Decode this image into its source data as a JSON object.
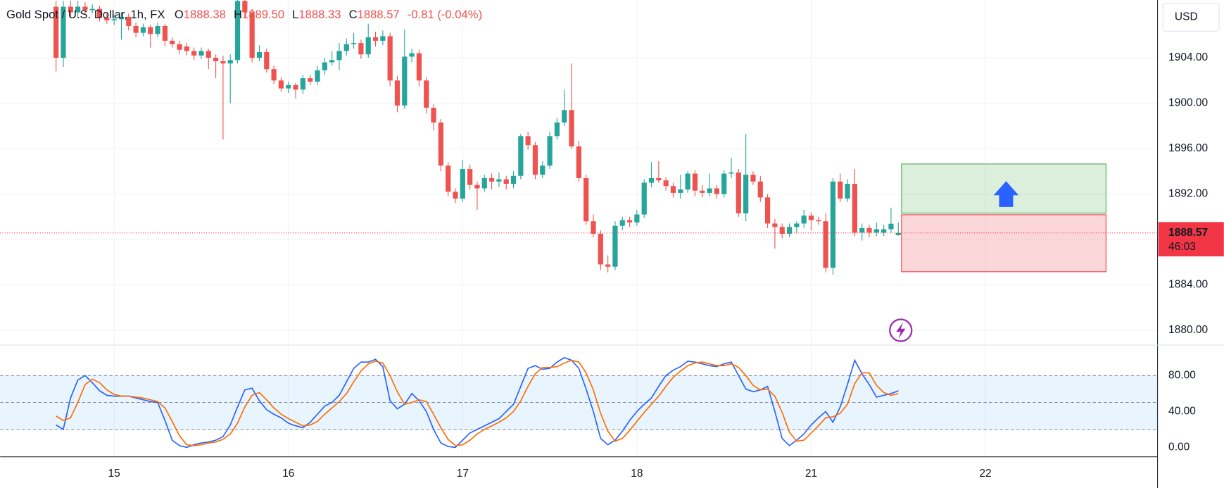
{
  "chart_data": {
    "type": "candlestick",
    "title": "Gold Spot / U.S. Dollar, 1h, FX",
    "ohlc_legend": [
      {
        "key": "O",
        "text": "1888.38"
      },
      {
        "key": "H",
        "text": "1889.50"
      },
      {
        "key": "L",
        "text": "1888.33"
      },
      {
        "key": "C",
        "text": "1888.57"
      }
    ],
    "change": "-0.81 (-0.04%)",
    "currency": "USD",
    "last_price": 1888.57,
    "countdown": "46:03",
    "up_color": "#26a69a",
    "down_color": "#ef5350",
    "last_price_color": "#f23645",
    "xlim": [
      -7.7,
      151.7
    ],
    "xticks": [
      {
        "value": 8,
        "label": "15"
      },
      {
        "value": 32,
        "label": "16"
      },
      {
        "value": 56,
        "label": "17"
      },
      {
        "value": 80,
        "label": "18"
      },
      {
        "value": 104,
        "label": "21"
      },
      {
        "value": 128,
        "label": "22"
      }
    ],
    "ylim": [
      1878.83,
      1909.09
    ],
    "yticks": [
      {
        "value": 1880,
        "label": "1880.00"
      },
      {
        "value": 1884,
        "label": "1884.00"
      },
      {
        "value": 1888,
        "label": "1888.00"
      },
      {
        "value": 1892,
        "label": "1892.00"
      },
      {
        "value": 1896,
        "label": "1896.00"
      },
      {
        "value": 1900,
        "label": "1900.00"
      },
      {
        "value": 1904,
        "label": "1904.00"
      }
    ],
    "y2lim": [
      -10.4,
      113
    ],
    "y2ticks": [
      {
        "value": 0,
        "label": "0.00"
      },
      {
        "value": 40,
        "label": "40.00"
      },
      {
        "value": 80,
        "label": "80.00"
      }
    ],
    "y2_bands": [
      20,
      50,
      80
    ],
    "grid": true,
    "candles": [
      [
        1908.5,
        1909.0,
        1902.8,
        1904.0
      ],
      [
        1904.0,
        1909.0,
        1903.2,
        1908.5
      ],
      [
        1908.5,
        1909.0,
        1907.5,
        1908.0
      ],
      [
        1908.0,
        1909.0,
        1907.6,
        1908.5
      ],
      [
        1908.5,
        1908.9,
        1907.8,
        1908.2
      ],
      [
        1908.2,
        1908.7,
        1907.9,
        1908.3
      ],
      [
        1908.3,
        1908.6,
        1907.2,
        1907.5
      ],
      [
        1907.5,
        1907.9,
        1907.0,
        1907.3
      ],
      [
        1907.3,
        1907.8,
        1906.9,
        1907.4
      ],
      [
        1907.4,
        1908.0,
        1905.6,
        1907.6
      ],
      [
        1907.6,
        1907.9,
        1906.4,
        1906.8
      ],
      [
        1906.8,
        1907.1,
        1905.8,
        1906.2
      ],
      [
        1906.2,
        1907.0,
        1905.9,
        1906.7
      ],
      [
        1906.7,
        1906.9,
        1904.9,
        1906.1
      ],
      [
        1906.1,
        1907.1,
        1905.8,
        1906.8
      ],
      [
        1906.8,
        1907.0,
        1905.0,
        1905.5
      ],
      [
        1905.5,
        1905.8,
        1904.9,
        1905.2
      ],
      [
        1905.2,
        1905.5,
        1904.3,
        1904.7
      ],
      [
        1905.0,
        1905.3,
        1904.2,
        1904.6
      ],
      [
        1904.6,
        1904.9,
        1903.8,
        1904.2
      ],
      [
        1904.2,
        1904.9,
        1903.9,
        1904.6
      ],
      [
        1904.6,
        1904.8,
        1903.0,
        1904.0
      ],
      [
        1904.0,
        1904.3,
        1902.2,
        1903.7
      ],
      [
        1903.7,
        1904.2,
        1896.8,
        1903.5
      ],
      [
        1903.5,
        1904.3,
        1900.0,
        1903.8
      ],
      [
        1903.8,
        1909.5,
        1903.5,
        1909.0
      ],
      [
        1909.0,
        1909.4,
        1907.5,
        1908.0
      ],
      [
        1908.0,
        1908.3,
        1903.6,
        1904.0
      ],
      [
        1904.0,
        1905.1,
        1903.7,
        1904.5
      ],
      [
        1904.5,
        1904.8,
        1902.7,
        1903.0
      ],
      [
        1903.0,
        1903.3,
        1901.7,
        1902.0
      ],
      [
        1902.0,
        1902.3,
        1901.0,
        1901.3
      ],
      [
        1901.3,
        1901.9,
        1900.9,
        1901.6
      ],
      [
        1901.6,
        1901.8,
        1900.4,
        1901.2
      ],
      [
        1901.2,
        1902.5,
        1900.8,
        1902.2
      ],
      [
        1902.2,
        1902.5,
        1901.6,
        1901.9
      ],
      [
        1901.9,
        1903.3,
        1901.6,
        1902.9
      ],
      [
        1902.9,
        1904.0,
        1902.5,
        1903.6
      ],
      [
        1903.6,
        1904.6,
        1903.3,
        1903.8
      ],
      [
        1903.8,
        1905.3,
        1902.9,
        1904.6
      ],
      [
        1904.6,
        1905.7,
        1904.2,
        1905.2
      ],
      [
        1905.2,
        1906.2,
        1904.8,
        1905.3
      ],
      [
        1905.3,
        1905.6,
        1903.9,
        1904.3
      ],
      [
        1904.3,
        1907.0,
        1904.0,
        1905.8
      ],
      [
        1905.8,
        1906.3,
        1905.0,
        1905.5
      ],
      [
        1905.5,
        1906.4,
        1905.1,
        1905.9
      ],
      [
        1905.9,
        1906.2,
        1901.5,
        1902.0
      ],
      [
        1902.0,
        1902.4,
        1899.2,
        1899.8
      ],
      [
        1899.8,
        1906.5,
        1899.5,
        1904.1
      ],
      [
        1904.1,
        1904.8,
        1903.6,
        1904.4
      ],
      [
        1904.4,
        1904.7,
        1901.5,
        1902.0
      ],
      [
        1902.0,
        1902.3,
        1899.1,
        1899.6
      ],
      [
        1899.6,
        1899.9,
        1897.6,
        1898.3
      ],
      [
        1898.3,
        1898.6,
        1894.0,
        1894.5
      ],
      [
        1894.5,
        1894.8,
        1891.8,
        1892.2
      ],
      [
        1892.2,
        1892.5,
        1891.2,
        1891.6
      ],
      [
        1891.6,
        1895.0,
        1891.3,
        1894.2
      ],
      [
        1894.2,
        1894.6,
        1892.4,
        1892.8
      ],
      [
        1892.8,
        1893.1,
        1890.6,
        1892.5
      ],
      [
        1892.5,
        1893.7,
        1892.2,
        1893.4
      ],
      [
        1893.4,
        1893.8,
        1892.4,
        1893.1
      ],
      [
        1893.1,
        1893.9,
        1892.6,
        1893.3
      ],
      [
        1893.3,
        1893.6,
        1892.4,
        1892.9
      ],
      [
        1892.9,
        1894.0,
        1892.5,
        1893.6
      ],
      [
        1893.6,
        1897.3,
        1893.3,
        1897.1
      ],
      [
        1897.1,
        1897.5,
        1895.9,
        1896.3
      ],
      [
        1896.3,
        1896.6,
        1893.3,
        1893.7
      ],
      [
        1893.7,
        1894.9,
        1893.4,
        1894.5
      ],
      [
        1894.5,
        1897.5,
        1894.2,
        1897.1
      ],
      [
        1897.1,
        1898.7,
        1896.8,
        1898.3
      ],
      [
        1898.3,
        1901.2,
        1898.0,
        1899.4
      ],
      [
        1899.4,
        1903.5,
        1896.0,
        1896.2
      ],
      [
        1896.2,
        1896.7,
        1893.1,
        1893.4
      ],
      [
        1893.4,
        1893.7,
        1889.3,
        1889.6
      ],
      [
        1889.6,
        1890.2,
        1888.2,
        1888.5
      ],
      [
        1888.5,
        1888.8,
        1885.3,
        1885.8
      ],
      [
        1885.8,
        1886.6,
        1885.1,
        1885.6
      ],
      [
        1885.6,
        1889.6,
        1885.3,
        1889.2
      ],
      [
        1889.2,
        1890.0,
        1888.8,
        1889.7
      ],
      [
        1889.7,
        1890.0,
        1889.1,
        1889.5
      ],
      [
        1889.5,
        1890.6,
        1889.2,
        1890.2
      ],
      [
        1890.2,
        1893.3,
        1889.9,
        1893.0
      ],
      [
        1893.0,
        1894.8,
        1892.6,
        1893.4
      ],
      [
        1893.4,
        1894.9,
        1893.0,
        1893.2
      ],
      [
        1893.2,
        1893.5,
        1892.3,
        1892.7
      ],
      [
        1892.7,
        1893.0,
        1891.7,
        1892.1
      ],
      [
        1892.1,
        1893.7,
        1891.6,
        1892.4
      ],
      [
        1892.4,
        1894.0,
        1892.1,
        1893.8
      ],
      [
        1893.8,
        1894.1,
        1891.8,
        1892.3
      ],
      [
        1892.3,
        1892.8,
        1891.7,
        1892.1
      ],
      [
        1892.1,
        1893.8,
        1891.8,
        1892.5
      ],
      [
        1892.5,
        1892.8,
        1891.6,
        1892.0
      ],
      [
        1892.0,
        1894.1,
        1891.7,
        1893.8
      ],
      [
        1893.8,
        1895.2,
        1893.4,
        1893.9
      ],
      [
        1893.9,
        1894.2,
        1890.0,
        1890.3
      ],
      [
        1890.3,
        1897.3,
        1889.6,
        1893.7
      ],
      [
        1893.7,
        1894.0,
        1892.8,
        1893.1
      ],
      [
        1893.1,
        1893.6,
        1891.3,
        1891.7
      ],
      [
        1891.7,
        1892.0,
        1889.0,
        1889.4
      ],
      [
        1889.4,
        1889.8,
        1887.2,
        1889.1
      ],
      [
        1889.1,
        1889.4,
        1888.1,
        1888.5
      ],
      [
        1888.5,
        1889.4,
        1888.2,
        1889.1
      ],
      [
        1889.1,
        1889.6,
        1888.6,
        1889.4
      ],
      [
        1889.4,
        1890.6,
        1889.0,
        1890.1
      ],
      [
        1890.1,
        1890.4,
        1888.8,
        1889.7
      ],
      [
        1889.7,
        1890.0,
        1889.3,
        1889.6
      ],
      [
        1889.6,
        1890.3,
        1885.1,
        1885.5
      ],
      [
        1885.5,
        1893.4,
        1884.9,
        1893.1
      ],
      [
        1893.1,
        1893.8,
        1891.3,
        1891.6
      ],
      [
        1891.6,
        1893.3,
        1891.3,
        1892.9
      ],
      [
        1892.9,
        1894.2,
        1888.3,
        1888.6
      ],
      [
        1888.6,
        1889.4,
        1887.9,
        1889.0
      ],
      [
        1889.0,
        1889.3,
        1888.2,
        1888.6
      ],
      [
        1888.6,
        1889.5,
        1888.3,
        1888.9
      ],
      [
        1888.6,
        1889.3,
        1888.3,
        1888.9
      ],
      [
        1888.9,
        1890.8,
        1888.6,
        1889.38
      ],
      [
        1888.38,
        1889.5,
        1888.33,
        1888.57
      ]
    ],
    "series": [
      {
        "name": "%K",
        "color": "#2962ff",
        "axis": "y2",
        "values": [
          25,
          20,
          55,
          75,
          80,
          72,
          63,
          58,
          57,
          57,
          57,
          55,
          53,
          51,
          50,
          30,
          8,
          2,
          0,
          3,
          5,
          6,
          8,
          12,
          25,
          45,
          64,
          66,
          52,
          42,
          37,
          33,
          27,
          24,
          22,
          28,
          37,
          46,
          50,
          58,
          73,
          88,
          95,
          95,
          98,
          90,
          52,
          43,
          48,
          60,
          52,
          40,
          20,
          5,
          1,
          0,
          8,
          16,
          20,
          24,
          28,
          32,
          40,
          48,
          68,
          88,
          91,
          87,
          88,
          95,
          100,
          97,
          88,
          65,
          40,
          10,
          3,
          8,
          18,
          30,
          40,
          48,
          55,
          68,
          80,
          86,
          90,
          96,
          95,
          93,
          91,
          90,
          93,
          95,
          80,
          65,
          62,
          64,
          68,
          40,
          10,
          2,
          8,
          15,
          25,
          33,
          40,
          28,
          45,
          70,
          97,
          82,
          70,
          56,
          58,
          60,
          63
        ]
      },
      {
        "name": "%D",
        "color": "#ff6d00",
        "axis": "y2",
        "values": [
          35,
          30,
          33,
          50,
          70,
          76,
          72,
          64,
          59,
          57,
          57,
          56,
          55,
          53,
          51,
          44,
          29,
          13,
          3,
          2,
          3,
          5,
          6,
          9,
          15,
          27,
          45,
          58,
          61,
          53,
          44,
          37,
          32,
          28,
          24,
          25,
          29,
          37,
          44,
          51,
          60,
          73,
          85,
          93,
          96,
          94,
          80,
          62,
          48,
          50,
          53,
          51,
          37,
          22,
          9,
          2,
          3,
          8,
          15,
          20,
          24,
          28,
          33,
          40,
          52,
          68,
          82,
          89,
          89,
          90,
          94,
          97,
          95,
          83,
          64,
          38,
          18,
          7,
          10,
          19,
          29,
          39,
          48,
          57,
          68,
          78,
          85,
          91,
          94,
          95,
          93,
          91,
          91,
          93,
          89,
          80,
          69,
          64,
          65,
          57,
          39,
          17,
          7,
          8,
          16,
          24,
          33,
          34,
          38,
          48,
          71,
          83,
          83,
          69,
          61,
          58,
          60
        ]
      }
    ]
  }
}
